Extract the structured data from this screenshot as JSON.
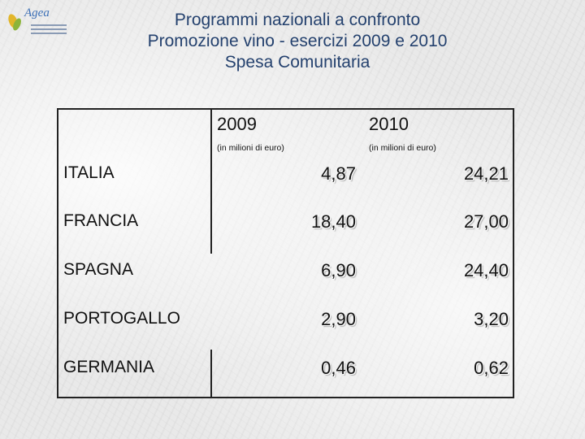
{
  "title": {
    "line1": "Programmi nazionali a confronto",
    "line2": "Promozione vino - esercizi 2009 e 2010",
    "line3": "Spesa Comunitaria"
  },
  "logo": {
    "text": "Agea"
  },
  "table": {
    "columns": [
      {
        "year": "2009",
        "unit": "(in milioni di euro)"
      },
      {
        "year": "2010",
        "unit": "(in milioni di euro)"
      }
    ],
    "rows": [
      {
        "country": "ITALIA",
        "v2009": "4,87",
        "v2010": "24,21"
      },
      {
        "country": "FRANCIA",
        "v2009": "18,40",
        "v2010": "27,00"
      },
      {
        "country": "SPAGNA",
        "v2009": "6,90",
        "v2010": "24,40"
      },
      {
        "country": "PORTOGALLO",
        "v2009": "2,90",
        "v2010": "3,20"
      },
      {
        "country": "GERMANIA",
        "v2009": "0,46",
        "v2010": "0,62"
      }
    ]
  },
  "colors": {
    "title": "#24416e",
    "logo": "#3b6fb6",
    "background": "#e9e9e9"
  }
}
